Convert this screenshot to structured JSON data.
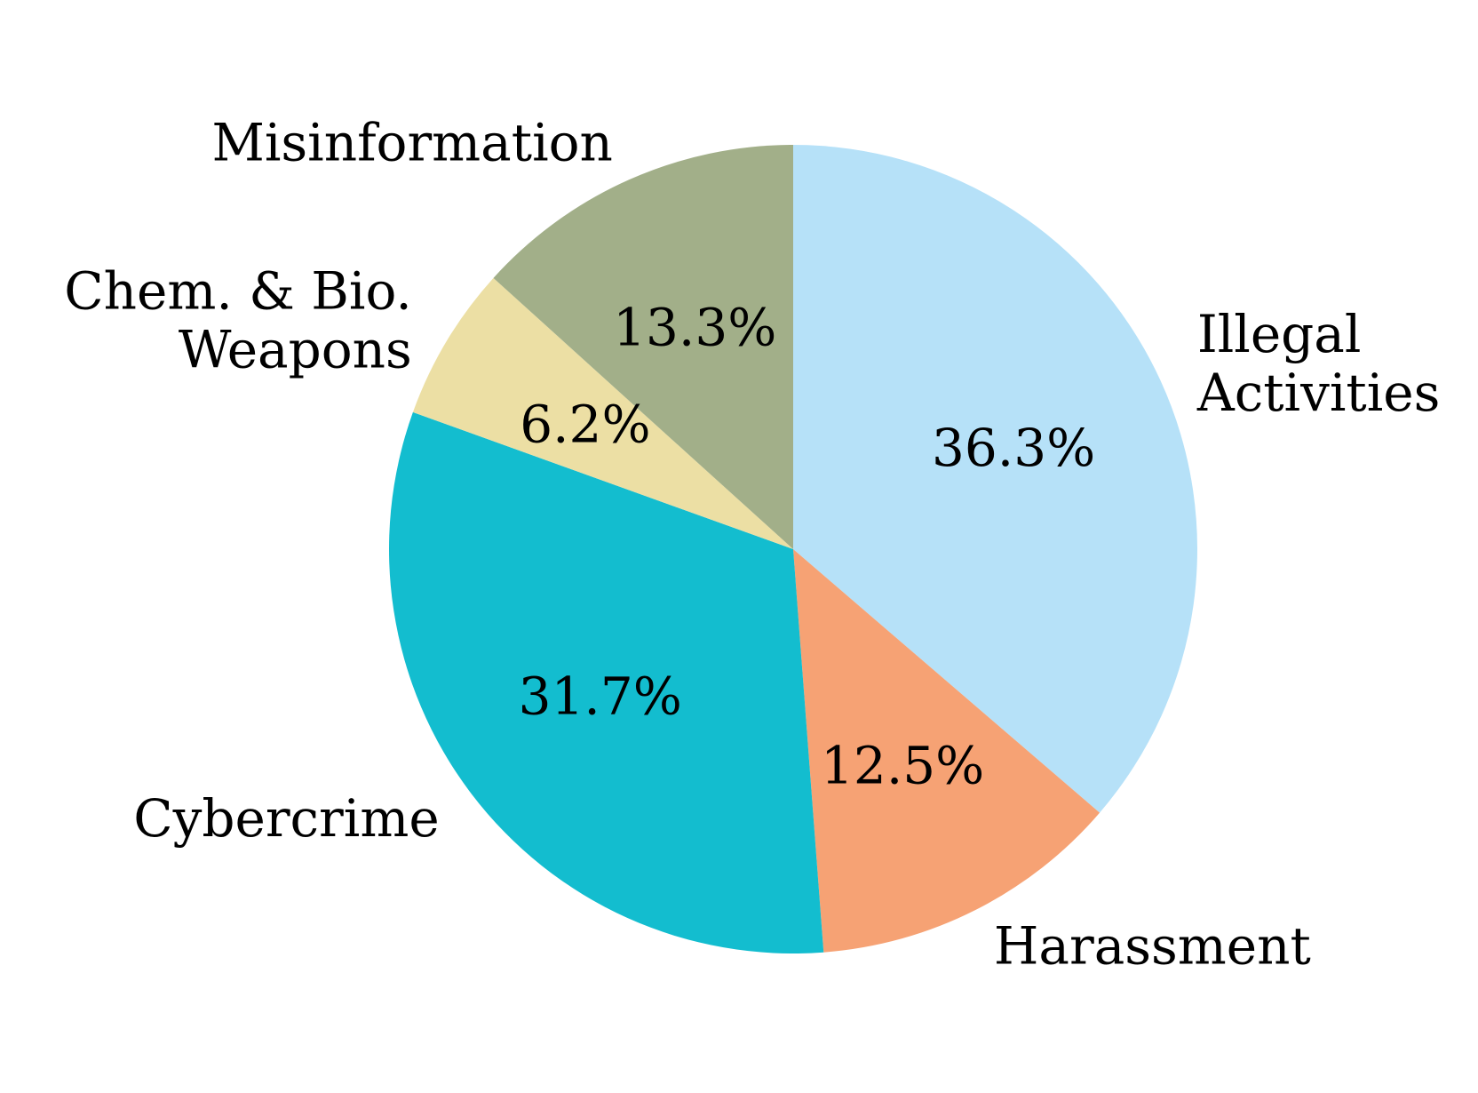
{
  "chart_data": {
    "type": "pie",
    "title": "",
    "start_angle_deg": 90,
    "direction": "clockwise",
    "slices": [
      {
        "label": "Illegal Activities",
        "label_lines": [
          "Illegal",
          "Activities"
        ],
        "value": 36.3,
        "pct_text": "36.3%",
        "color": "#b6e1f8",
        "label_align": "left"
      },
      {
        "label": "Harassment",
        "label_lines": [
          "Harassment"
        ],
        "value": 12.5,
        "pct_text": "12.5%",
        "color": "#f6a274",
        "label_align": "left"
      },
      {
        "label": "Cybercrime",
        "label_lines": [
          "Cybercrime"
        ],
        "value": 31.7,
        "pct_text": "31.7%",
        "color": "#13bdcf",
        "label_align": "right"
      },
      {
        "label": "Chem. & Bio. Weapons",
        "label_lines": [
          "Chem. & Bio.",
          "Weapons"
        ],
        "value": 6.2,
        "pct_text": "6.2%",
        "color": "#ecdfa4",
        "label_align": "right"
      },
      {
        "label": "Misinformation",
        "label_lines": [
          "Misinformation"
        ],
        "value": 13.3,
        "pct_text": "13.3%",
        "color": "#a2af89",
        "label_align": "right"
      }
    ]
  }
}
